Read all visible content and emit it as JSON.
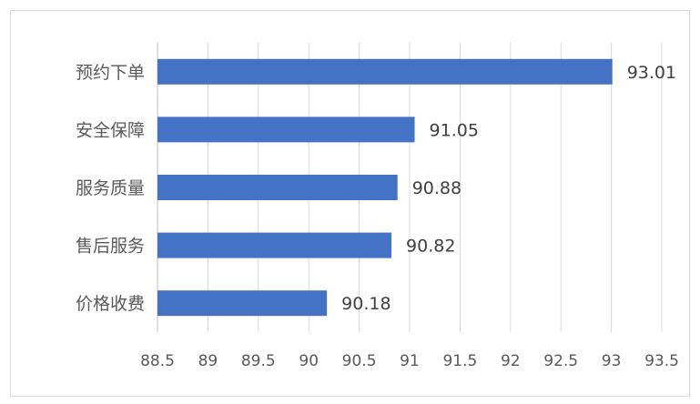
{
  "chart_data": {
    "type": "bar",
    "orientation": "horizontal",
    "categories": [
      "预约下单",
      "安全保障",
      "服务质量",
      "售后服务",
      "价格收费"
    ],
    "values": [
      93.01,
      91.05,
      90.88,
      90.82,
      90.18
    ],
    "value_labels": [
      "93.01",
      "91.05",
      "90.88",
      "90.82",
      "90.18"
    ],
    "xlim": [
      88.5,
      93.5
    ],
    "x_ticks": [
      "88.5",
      "89",
      "89.5",
      "90",
      "90.5",
      "91",
      "91.5",
      "92",
      "92.5",
      "93",
      "93.5"
    ],
    "grid": true,
    "legend": "none",
    "title": "",
    "xlabel": "",
    "ylabel": "",
    "colors": {
      "bar": "#4472c4",
      "grid": "#d9d9d9",
      "axis": "#bfbfbf"
    }
  }
}
